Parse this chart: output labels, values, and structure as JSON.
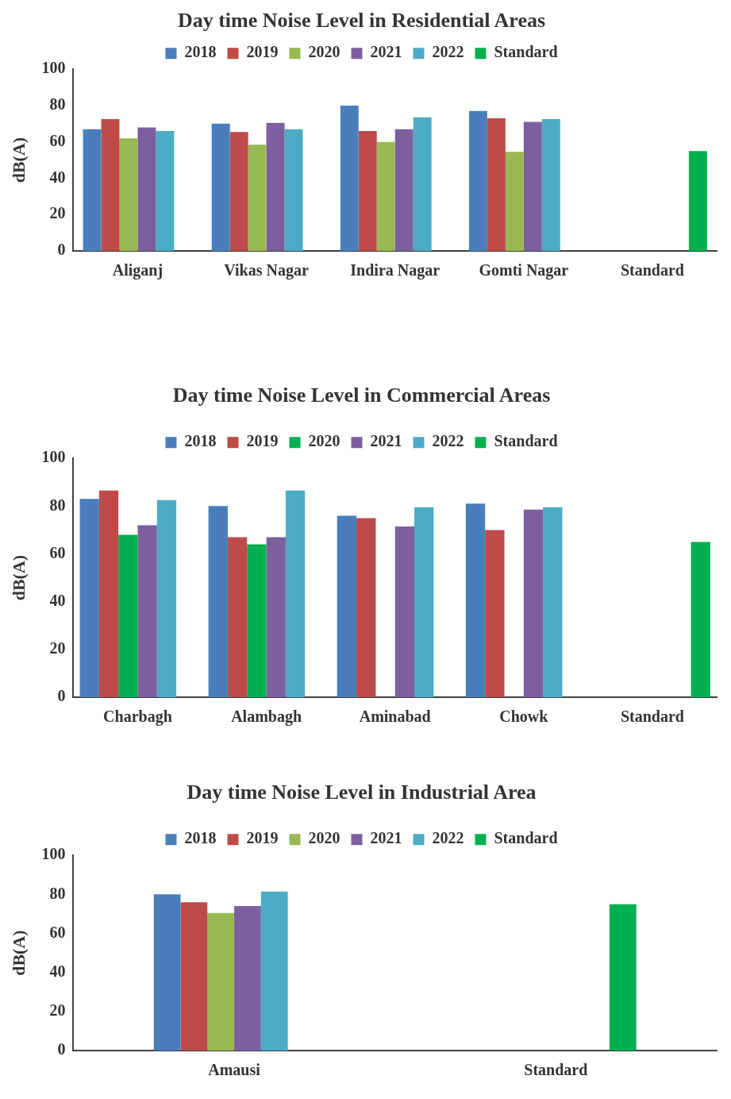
{
  "chart_data": [
    {
      "type": "bar",
      "title": "Day time Noise Level in Residential Areas",
      "ylabel": "dB(A)",
      "categories": [
        "Aliganj",
        "Vikas Nagar",
        "Indira Nagar",
        "Gomti Nagar",
        "Standard"
      ],
      "series": [
        {
          "name": "2018",
          "color": "#4a7ebb",
          "values": [
            67,
            70,
            80,
            77,
            null
          ]
        },
        {
          "name": "2019",
          "color": "#be4b48",
          "values": [
            72.5,
            65.5,
            66,
            73,
            null
          ]
        },
        {
          "name": "2020",
          "color": "#98b954",
          "values": [
            62,
            58.5,
            60,
            54.5,
            null
          ]
        },
        {
          "name": "2021",
          "color": "#7d5fa0",
          "values": [
            68,
            70.5,
            67,
            71,
            null
          ]
        },
        {
          "name": "2022",
          "color": "#4bacc6",
          "values": [
            66,
            67,
            73.5,
            72.5,
            null
          ]
        },
        {
          "name": "Standard",
          "color": "#00b050",
          "values": [
            null,
            null,
            null,
            null,
            55
          ]
        }
      ],
      "ylim": [
        0,
        100
      ],
      "yticks": [
        0,
        20,
        40,
        60,
        80,
        100
      ],
      "grid": false,
      "legend": "top"
    },
    {
      "type": "bar",
      "title": "Day time Noise Level in Commercial Areas",
      "ylabel": "dB(A)",
      "categories": [
        "Charbagh",
        "Alambagh",
        "Aminabad",
        "Chowk",
        "Standard"
      ],
      "series": [
        {
          "name": "2018",
          "color": "#4a7ebb",
          "values": [
            83,
            80,
            76,
            81,
            null
          ]
        },
        {
          "name": "2019",
          "color": "#be4b48",
          "values": [
            86.5,
            67,
            75,
            70,
            null
          ]
        },
        {
          "name": "2020",
          "color": "#00b050",
          "values": [
            68,
            64,
            null,
            null,
            null
          ]
        },
        {
          "name": "2021",
          "color": "#7d5fa0",
          "values": [
            72,
            67,
            71.5,
            78.5,
            null
          ]
        },
        {
          "name": "2022",
          "color": "#4bacc6",
          "values": [
            82.5,
            86.5,
            79.5,
            79.5,
            null
          ]
        },
        {
          "name": "Standard",
          "color": "#00b050",
          "values": [
            null,
            null,
            null,
            null,
            65
          ]
        }
      ],
      "ylim": [
        0,
        100
      ],
      "yticks": [
        0,
        20,
        40,
        60,
        80,
        100
      ],
      "grid": false,
      "legend": "top"
    },
    {
      "type": "bar",
      "title": "Day time Noise Level in Industrial Area",
      "ylabel": "dB(A)",
      "categories": [
        "Amausi",
        "Standard"
      ],
      "series": [
        {
          "name": "2018",
          "color": "#4a7ebb",
          "values": [
            80,
            null
          ]
        },
        {
          "name": "2019",
          "color": "#be4b48",
          "values": [
            76,
            null
          ]
        },
        {
          "name": "2020",
          "color": "#98b954",
          "values": [
            70.5,
            null
          ]
        },
        {
          "name": "2021",
          "color": "#7d5fa0",
          "values": [
            74,
            null
          ]
        },
        {
          "name": "2022",
          "color": "#4bacc6",
          "values": [
            81.5,
            null
          ]
        },
        {
          "name": "Standard",
          "color": "#00b050",
          "values": [
            null,
            75
          ]
        }
      ],
      "ylim": [
        0,
        100
      ],
      "yticks": [
        0,
        20,
        40,
        60,
        80,
        100
      ],
      "grid": false,
      "legend": "top"
    }
  ]
}
